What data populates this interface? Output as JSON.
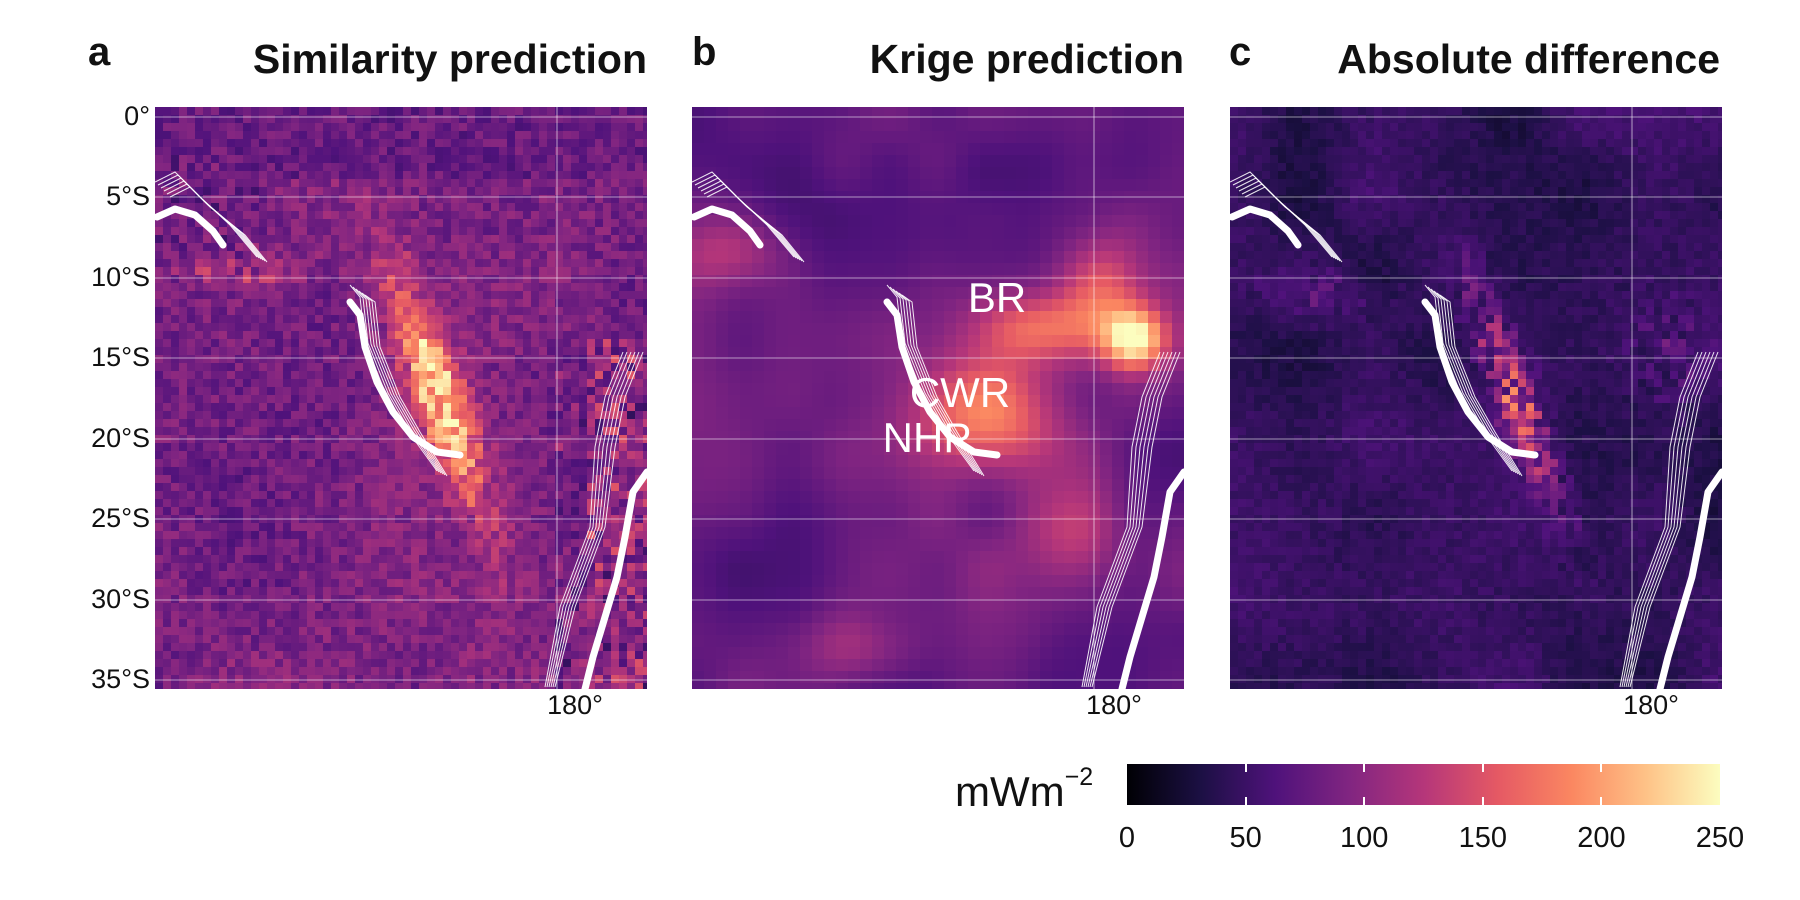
{
  "panels": [
    {
      "letter": "a",
      "title": "Similarity prediction",
      "labels": []
    },
    {
      "letter": "b",
      "title": "Krige prediction",
      "labels": [
        "BR",
        "CWR",
        "NHP"
      ]
    },
    {
      "letter": "c",
      "title": "Absolute difference",
      "labels": []
    }
  ],
  "y_ticks": [
    "0°",
    "5°S",
    "10°S",
    "15°S",
    "20°S",
    "25°S",
    "30°S",
    "35°S"
  ],
  "x_ticks": [
    "180°",
    "180°",
    "180°"
  ],
  "colorbar": {
    "unit_base": "mWm",
    "unit_exp": "−2",
    "ticks": [
      "0",
      "50",
      "100",
      "150",
      "200",
      "250"
    ],
    "colors": [
      "#000004",
      "#1c1044",
      "#4f127b",
      "#812581",
      "#b5367a",
      "#e55964",
      "#fb8761",
      "#fec287",
      "#fcfdbf"
    ]
  },
  "chart_data": [
    {
      "type": "heatmap",
      "title": "Similarity prediction",
      "value_range": [
        0,
        250
      ],
      "unit": "mWm−2",
      "y_axis_ticks": [
        "0°",
        "5°S",
        "10°S",
        "15°S",
        "20°S",
        "25°S",
        "30°S",
        "35°S"
      ],
      "x_axis_ticks": [
        "180°"
      ]
    },
    {
      "type": "heatmap",
      "title": "Krige prediction",
      "value_range": [
        0,
        250
      ],
      "unit": "mWm−2",
      "annotations": [
        "BR",
        "CWR",
        "NHP"
      ],
      "x_axis_ticks": [
        "180°"
      ]
    },
    {
      "type": "heatmap",
      "title": "Absolute difference",
      "value_range": [
        0,
        250
      ],
      "unit": "mWm−2",
      "x_axis_ticks": [
        "180°"
      ]
    }
  ]
}
